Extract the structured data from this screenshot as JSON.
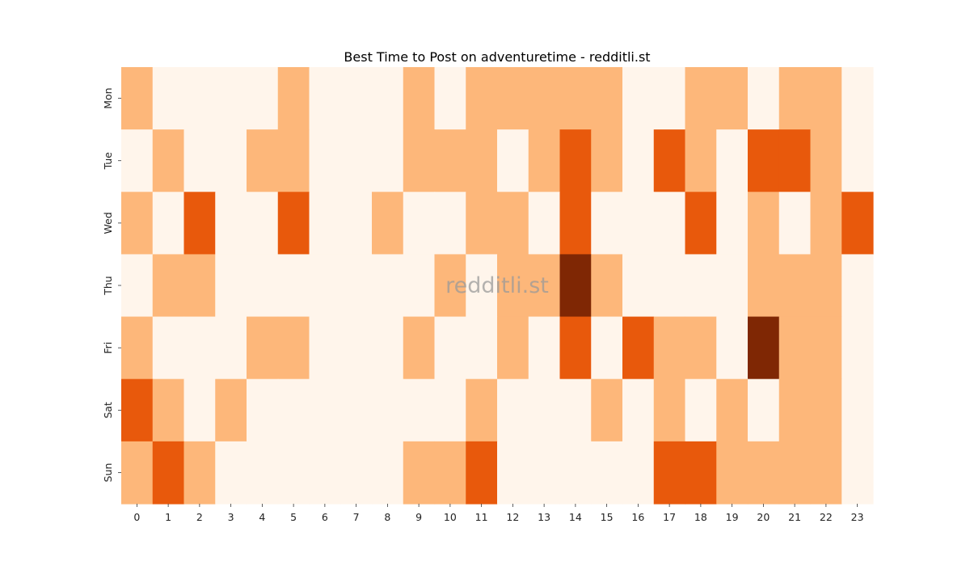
{
  "chart_data": {
    "type": "heatmap",
    "title": "Best Time to Post on adventuretime - redditli.st",
    "watermark": "redditli.st",
    "xlabel": "",
    "ylabel": "",
    "x_categories": [
      "0",
      "1",
      "2",
      "3",
      "4",
      "5",
      "6",
      "7",
      "8",
      "9",
      "10",
      "11",
      "12",
      "13",
      "14",
      "15",
      "16",
      "17",
      "18",
      "19",
      "20",
      "21",
      "22",
      "23"
    ],
    "y_categories": [
      "Mon",
      "Tue",
      "Wed",
      "Thu",
      "Fri",
      "Sat",
      "Sun"
    ],
    "value_range": [
      0,
      3
    ],
    "colorscale": [
      "#fff5eb",
      "#fdb77a",
      "#e8590c",
      "#7f2704"
    ],
    "values": [
      [
        1,
        0,
        0,
        0,
        0,
        1,
        0,
        0,
        0,
        1,
        0,
        1,
        1,
        1,
        1,
        1,
        0,
        0,
        1,
        1,
        0,
        1,
        1,
        0
      ],
      [
        0,
        1,
        0,
        0,
        1,
        1,
        0,
        0,
        0,
        1,
        1,
        1,
        0,
        1,
        2,
        1,
        0,
        2,
        1,
        0,
        2,
        2,
        1,
        0
      ],
      [
        1,
        0,
        2,
        0,
        0,
        2,
        0,
        0,
        1,
        0,
        0,
        1,
        1,
        0,
        2,
        0,
        0,
        0,
        2,
        0,
        1,
        0,
        1,
        2
      ],
      [
        0,
        1,
        1,
        0,
        0,
        0,
        0,
        0,
        0,
        0,
        1,
        0,
        1,
        1,
        3,
        1,
        0,
        0,
        0,
        0,
        1,
        1,
        1,
        0
      ],
      [
        1,
        0,
        0,
        0,
        1,
        1,
        0,
        0,
        0,
        1,
        0,
        0,
        1,
        0,
        2,
        0,
        2,
        1,
        1,
        0,
        3,
        1,
        1,
        0
      ],
      [
        2,
        1,
        0,
        1,
        0,
        0,
        0,
        0,
        0,
        0,
        0,
        1,
        0,
        0,
        0,
        1,
        0,
        1,
        0,
        1,
        0,
        1,
        1,
        0
      ],
      [
        1,
        2,
        1,
        0,
        0,
        0,
        0,
        0,
        0,
        1,
        1,
        2,
        0,
        0,
        0,
        0,
        0,
        2,
        2,
        1,
        1,
        1,
        1,
        0
      ]
    ]
  }
}
